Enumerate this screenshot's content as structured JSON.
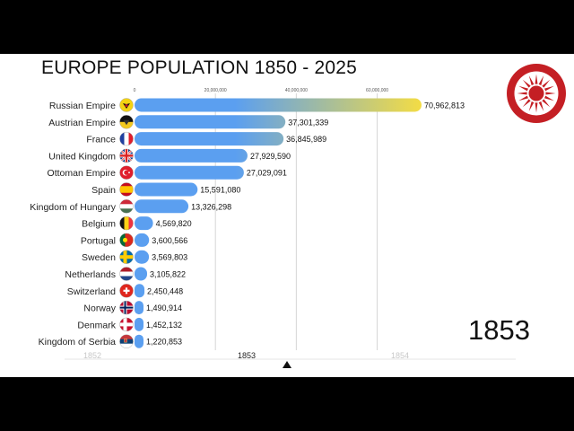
{
  "title": "EUROPE POPULATION 1850 - 2025",
  "current_year": "1853",
  "logo_icon": "sun-emblem-icon",
  "timeline": {
    "labels": [
      "1852",
      "1853",
      "1854"
    ],
    "active": "1853"
  },
  "chart_data": {
    "type": "bar",
    "orientation": "horizontal",
    "xlim": [
      0,
      70962813
    ],
    "x_ticks": [
      {
        "value": 0,
        "label": "0"
      },
      {
        "value": 20000000,
        "label": "20,000,000"
      },
      {
        "value": 40000000,
        "label": "40,000,000"
      },
      {
        "value": 60000000,
        "label": "60,000,000"
      }
    ],
    "categories": [
      "Russian Empire",
      "Austrian Empire",
      "France",
      "United Kingdom",
      "Ottoman Empire",
      "Spain",
      "Kingdom of Hungary",
      "Belgium",
      "Portugal",
      "Sweden",
      "Netherlands",
      "Switzerland",
      "Norway",
      "Denmark",
      "Kingdom of Serbia"
    ],
    "values": [
      70962813,
      37301339,
      36845989,
      27929590,
      27029091,
      15591080,
      13326298,
      4569820,
      3600566,
      3569803,
      3105822,
      2450448,
      1490914,
      1452132,
      1220853
    ],
    "value_labels": [
      "70,962,813",
      "37,301,339",
      "36,845,989",
      "27,929,590",
      "27,029,091",
      "15,591,080",
      "13,326,298",
      "4,569,820",
      "3,600,566",
      "3,569,803",
      "3,105,822",
      "2,450,448",
      "1,490,914",
      "1,452,132",
      "1,220,853"
    ],
    "flag_icons": [
      "russian-empire-flag-icon",
      "austrian-empire-flag-icon",
      "france-flag-icon",
      "united-kingdom-flag-icon",
      "ottoman-empire-flag-icon",
      "spain-flag-icon",
      "kingdom-of-hungary-flag-icon",
      "belgium-flag-icon",
      "portugal-flag-icon",
      "sweden-flag-icon",
      "netherlands-flag-icon",
      "switzerland-flag-icon",
      "norway-flag-icon",
      "denmark-flag-icon",
      "kingdom-of-serbia-flag-icon"
    ],
    "colors": {
      "bar_start": "#5b9ff0",
      "bar_end": "#f3dc45",
      "grid": "#d6d6d6",
      "logo": "#c41f24"
    }
  }
}
